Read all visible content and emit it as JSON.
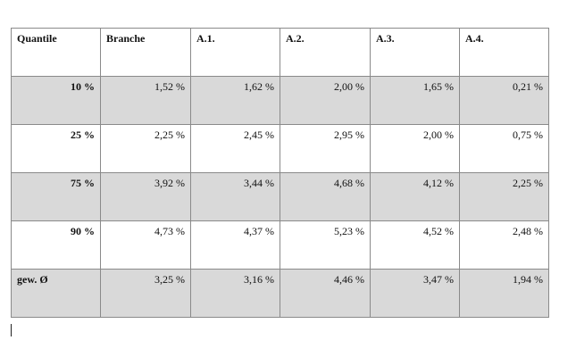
{
  "table": {
    "headers": [
      "Quantile",
      "Branche",
      "A.1.",
      "A.2.",
      "A.3.",
      "A.4."
    ],
    "rows": [
      {
        "label": "10 %",
        "values": [
          "1,52 %",
          "1,62 %",
          "2,00 %",
          "1,65 %",
          "0,21 %"
        ],
        "shaded": true,
        "align": "right"
      },
      {
        "label": "25 %",
        "values": [
          "2,25 %",
          "2,45 %",
          "2,95 %",
          "2,00 %",
          "0,75 %"
        ],
        "shaded": false,
        "align": "right"
      },
      {
        "label": "75 %",
        "values": [
          "3,92 %",
          "3,44 %",
          "4,68 %",
          "4,12 %",
          "2,25 %"
        ],
        "shaded": true,
        "align": "right"
      },
      {
        "label": "90 %",
        "values": [
          "4,73 %",
          "4,37 %",
          "5,23 %",
          "4,52 %",
          "2,48 %"
        ],
        "shaded": false,
        "align": "right"
      },
      {
        "label": "gew. Ø",
        "values": [
          "3,25 %",
          "3,16 %",
          "4,46 %",
          "3,47 %",
          "1,94 %"
        ],
        "shaded": true,
        "align": "left"
      }
    ]
  },
  "colors": {
    "shade": "#d9d9d9",
    "border": "#8a8a8a"
  }
}
